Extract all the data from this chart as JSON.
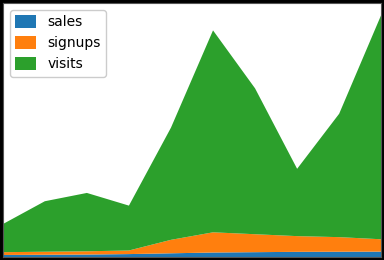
{
  "x": [
    0,
    1,
    2,
    3,
    4,
    5,
    6,
    7,
    8,
    9
  ],
  "sales": [
    200,
    220,
    240,
    280,
    350,
    420,
    450,
    480,
    490,
    500
  ],
  "signups": [
    250,
    270,
    290,
    320,
    1200,
    1800,
    1600,
    1400,
    1300,
    1100
  ],
  "visits": [
    2500,
    4500,
    5200,
    4000,
    10000,
    18000,
    13000,
    6000,
    11000,
    20000
  ],
  "sales_color": "#1f77b4",
  "signups_color": "#ff7f0e",
  "visits_color": "#2ca02c",
  "legend_labels": [
    "sales",
    "signups",
    "visits"
  ],
  "background_color": "#ffffff",
  "figure_bg": "#000000",
  "legend_fontsize": 10,
  "tick_labelsize": 8
}
